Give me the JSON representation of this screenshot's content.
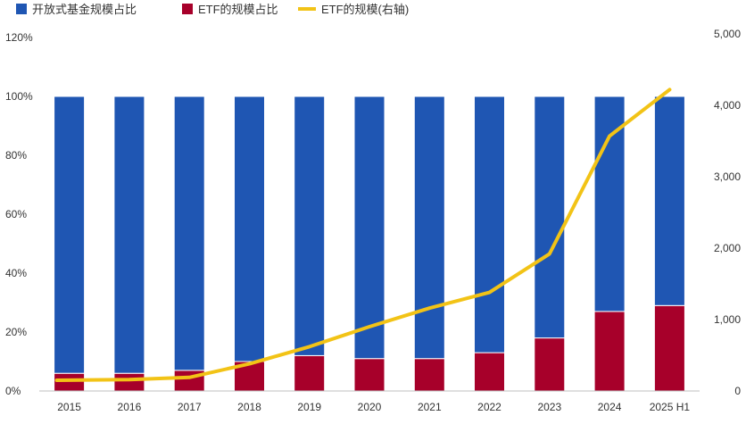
{
  "chart_data": {
    "type": "bar",
    "stacked": true,
    "categories": [
      "2015",
      "2016",
      "2017",
      "2018",
      "2019",
      "2020",
      "2021",
      "2022",
      "2023",
      "2024",
      "2025 H1"
    ],
    "series": [
      {
        "name": "开放式基金规模占比",
        "type": "bar",
        "axis": "left",
        "color": "#1f56b3",
        "values": [
          94,
          94,
          93,
          90,
          88,
          89,
          89,
          87,
          82,
          73,
          71
        ]
      },
      {
        "name": "ETF的规模占比",
        "type": "bar",
        "axis": "left",
        "color": "#a7002a",
        "values": [
          6,
          6,
          7,
          10,
          12,
          11,
          11,
          13,
          18,
          27,
          29
        ]
      },
      {
        "name": "ETF的规模(右轴)",
        "type": "line",
        "axis": "right",
        "color": "#f2c316",
        "values": [
          150,
          160,
          190,
          380,
          620,
          900,
          1160,
          1380,
          1920,
          3570,
          4220
        ]
      }
    ],
    "y_left": {
      "min": 0,
      "max": 120,
      "ticks": [
        0,
        20,
        40,
        60,
        80,
        100,
        120
      ],
      "tick_labels": [
        "0%",
        "20%",
        "40%",
        "60%",
        "80%",
        "100%",
        "120%"
      ]
    },
    "y_right": {
      "min": 0,
      "max": 5000,
      "ticks": [
        0,
        1000,
        2000,
        3000,
        4000,
        5000
      ],
      "tick_labels": [
        "0",
        "1,000",
        "2,000",
        "3,000",
        "4,000",
        "5,000"
      ]
    },
    "legend_position": "top-left",
    "grid": false
  }
}
